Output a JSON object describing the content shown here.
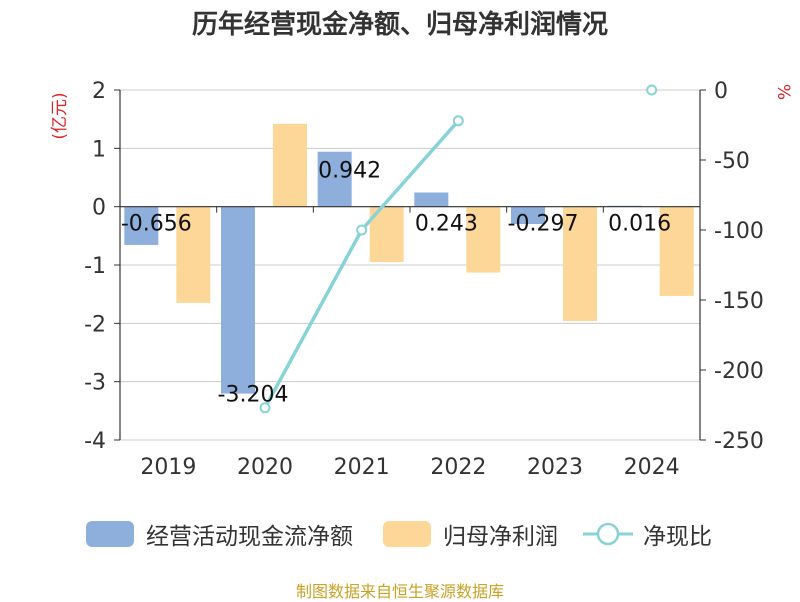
{
  "title": "历年经营现金净额、归母净利润情况",
  "source": "制图数据来自恒生聚源数据库",
  "chart_data": {
    "type": "bar",
    "categories": [
      "2019",
      "2020",
      "2021",
      "2022",
      "2023",
      "2024"
    ],
    "y_left": {
      "unit": "(亿元)",
      "min": -4,
      "max": 2,
      "ticks": [
        2,
        1,
        0,
        -1,
        -2,
        -3,
        -4
      ]
    },
    "y_right": {
      "unit": "%",
      "min": -250,
      "max": 0,
      "ticks": [
        0,
        -50,
        -100,
        -150,
        -200,
        -250
      ]
    },
    "grid": true,
    "legend_position": "bottom",
    "series": [
      {
        "name": "经营活动现金流净额",
        "type": "bar",
        "axis": "left",
        "color": "#8eaedb",
        "values": [
          -0.656,
          -3.204,
          0.942,
          0.243,
          -0.297,
          0.016
        ],
        "labels": [
          "-0.656",
          "-3.204",
          "0.942",
          "0.243",
          "-0.297",
          "0.016"
        ]
      },
      {
        "name": "归母净利润",
        "type": "bar",
        "axis": "left",
        "color": "#fdd798",
        "values": [
          -1.65,
          1.42,
          -0.95,
          -1.13,
          -1.96,
          -1.53
        ]
      },
      {
        "name": "净现比",
        "type": "line",
        "axis": "right",
        "color": "#88d3d8",
        "values": [
          null,
          -227,
          -100,
          -22,
          null,
          0
        ]
      }
    ]
  }
}
